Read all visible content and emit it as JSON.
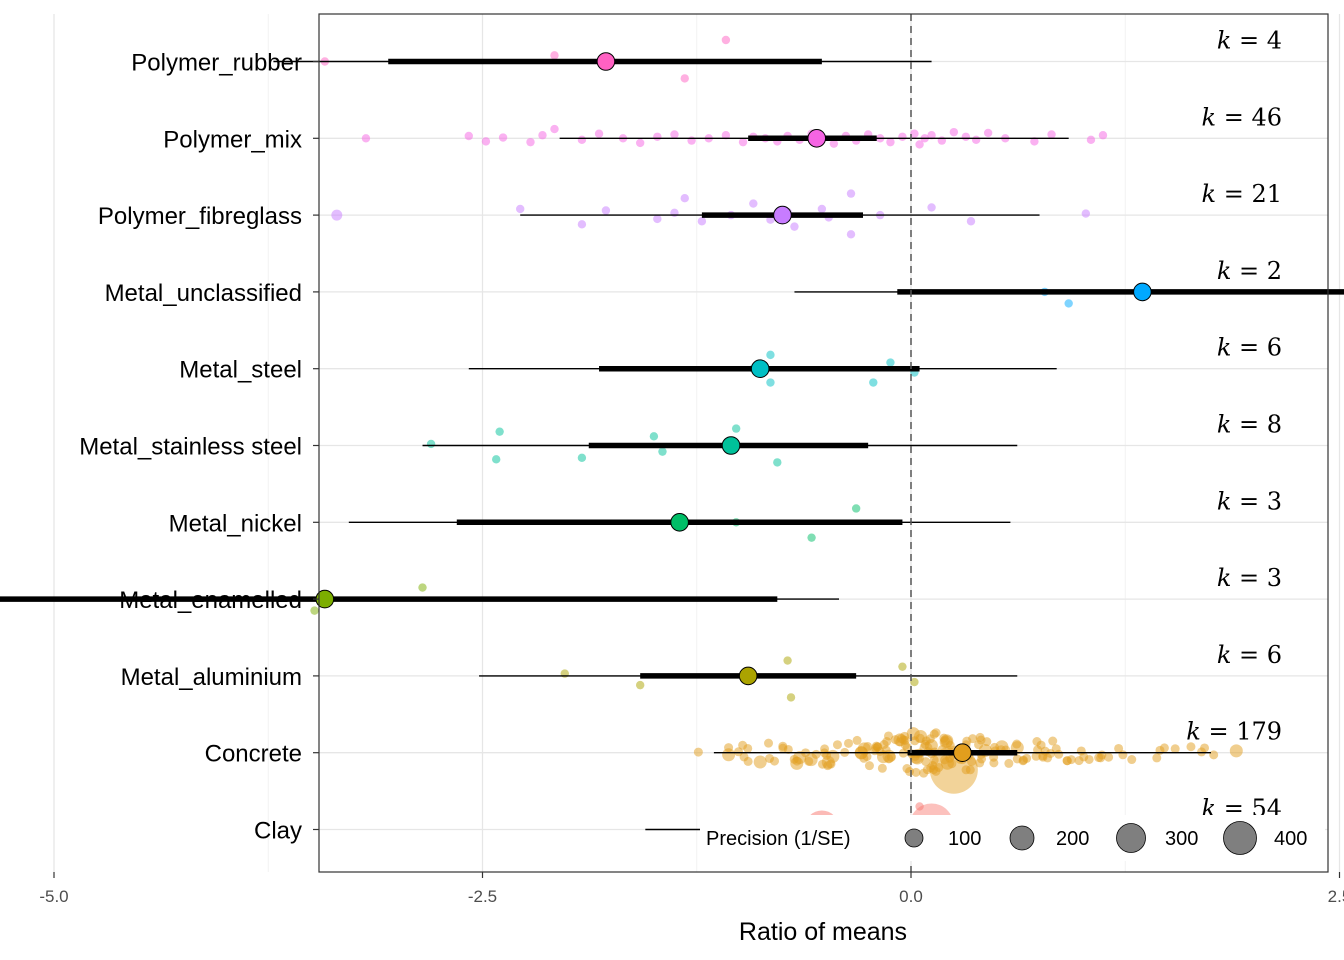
{
  "chart_data": {
    "type": "scatter",
    "xlabel": "Ratio of means",
    "xlim": [
      -6.9,
      4.6
    ],
    "x_ticks": [
      -5.0,
      -2.5,
      0.0,
      2.5
    ],
    "x_tick_labels": [
      "-5.0",
      "-2.5",
      "0.0",
      "2.5"
    ],
    "reference_line_x": 0,
    "grid": true,
    "legend": {
      "title": "Precision (1/SE)",
      "position": "bottom-right",
      "sizes": [
        100,
        200,
        300,
        400
      ],
      "labels": [
        "100",
        "200",
        "300",
        "400"
      ]
    },
    "categories": [
      {
        "name": "Polymer_rubber",
        "k_text": "= 4",
        "color": "#FF61C3",
        "estimate": -1.78,
        "ci": [
          -3.05,
          -0.52
        ],
        "pi": [
          -3.72,
          0.12
        ],
        "points": [
          [
            -1.32,
            -0.22
          ],
          [
            -3.42,
            0.0
          ],
          [
            -2.08,
            0.08
          ],
          [
            -1.08,
            0.28
          ]
        ]
      },
      {
        "name": "Polymer_mix",
        "k_text": "= 46",
        "color": "#F564E3",
        "estimate": -0.55,
        "ci": [
          -0.95,
          -0.2
        ],
        "pi": [
          -2.05,
          0.92
        ],
        "points": [
          [
            -3.18,
            0.0
          ],
          [
            -2.58,
            0.03
          ],
          [
            -2.48,
            -0.04
          ],
          [
            -2.38,
            0.01
          ],
          [
            -2.22,
            -0.05
          ],
          [
            -2.15,
            0.04
          ],
          [
            -2.08,
            0.12
          ],
          [
            -1.92,
            -0.02
          ],
          [
            -1.82,
            0.06
          ],
          [
            -1.68,
            0.0
          ],
          [
            -1.58,
            -0.06
          ],
          [
            -1.48,
            0.02
          ],
          [
            -1.38,
            0.05
          ],
          [
            -1.28,
            -0.03
          ],
          [
            -1.18,
            0.0
          ],
          [
            -1.08,
            0.04
          ],
          [
            -0.98,
            -0.05
          ],
          [
            -0.92,
            0.02
          ],
          [
            -0.85,
            0.0
          ],
          [
            -0.78,
            -0.04
          ],
          [
            -0.72,
            0.03
          ],
          [
            -0.65,
            -0.02
          ],
          [
            -0.58,
            0.06
          ],
          [
            -0.52,
            0.0
          ],
          [
            -0.45,
            -0.07
          ],
          [
            -0.38,
            0.03
          ],
          [
            -0.32,
            -0.03
          ],
          [
            -0.25,
            0.05
          ],
          [
            -0.18,
            0.0
          ],
          [
            -0.12,
            -0.05
          ],
          [
            -0.05,
            0.02
          ],
          [
            0.02,
            0.06
          ],
          [
            0.05,
            -0.08
          ],
          [
            0.08,
            0.0
          ],
          [
            0.12,
            0.04
          ],
          [
            0.18,
            -0.03
          ],
          [
            0.25,
            0.08
          ],
          [
            0.32,
            0.02
          ],
          [
            0.38,
            -0.02
          ],
          [
            0.45,
            0.07
          ],
          [
            0.55,
            0.0
          ],
          [
            0.72,
            -0.04
          ],
          [
            0.82,
            0.05
          ],
          [
            1.05,
            -0.02
          ],
          [
            1.12,
            0.04
          ],
          [
            3.95,
            0.0
          ]
        ]
      },
      {
        "name": "Polymer_fibreglass",
        "k_text": "= 21",
        "color": "#C77CFF",
        "estimate": -0.75,
        "ci": [
          -1.22,
          -0.28
        ],
        "pi": [
          -2.28,
          0.75
        ],
        "points": [
          [
            -3.35,
            0.0
          ],
          [
            -2.28,
            0.08
          ],
          [
            -1.92,
            -0.12
          ],
          [
            -1.78,
            0.06
          ],
          [
            -1.48,
            -0.05
          ],
          [
            -1.38,
            0.03
          ],
          [
            -1.32,
            0.22
          ],
          [
            -1.22,
            -0.08
          ],
          [
            -1.05,
            0.0
          ],
          [
            -0.92,
            0.15
          ],
          [
            -0.82,
            -0.06
          ],
          [
            -0.72,
            0.04
          ],
          [
            -0.68,
            -0.15
          ],
          [
            -0.52,
            0.08
          ],
          [
            -0.48,
            -0.03
          ],
          [
            -0.35,
            0.28
          ],
          [
            -0.35,
            -0.25
          ],
          [
            -0.18,
            0.0
          ],
          [
            0.12,
            0.1
          ],
          [
            0.35,
            -0.08
          ],
          [
            1.02,
            0.02
          ]
        ]
      },
      {
        "name": "Metal_unclassified",
        "k_text": "= 2",
        "color": "#00A9FF",
        "estimate": 1.35,
        "ci": [
          -0.08,
          2.8
        ],
        "pi": [
          -0.68,
          3.38
        ],
        "points": [
          [
            0.78,
            0.0
          ],
          [
            0.92,
            -0.15
          ]
        ]
      },
      {
        "name": "Metal_steel",
        "k_text": "= 6",
        "color": "#00BFC4",
        "estimate": -0.88,
        "ci": [
          -1.82,
          0.05
        ],
        "pi": [
          -2.58,
          0.85
        ],
        "points": [
          [
            -0.82,
            0.18
          ],
          [
            -0.82,
            -0.18
          ],
          [
            -0.12,
            0.08
          ],
          [
            -0.22,
            -0.18
          ],
          [
            0.02,
            -0.05
          ],
          [
            -0.92,
            0.0
          ]
        ]
      },
      {
        "name": "Metal_stainless steel",
        "k_text": "= 8",
        "color": "#00C19A",
        "estimate": -1.05,
        "ci": [
          -1.88,
          -0.25
        ],
        "pi": [
          -2.85,
          0.62
        ],
        "points": [
          [
            -2.4,
            0.18
          ],
          [
            -2.8,
            0.02
          ],
          [
            -2.42,
            -0.18
          ],
          [
            -1.5,
            0.12
          ],
          [
            -1.92,
            -0.16
          ],
          [
            -1.45,
            -0.08
          ],
          [
            -1.02,
            0.22
          ],
          [
            -0.78,
            -0.22
          ]
        ]
      },
      {
        "name": "Metal_nickel",
        "k_text": "= 3",
        "color": "#00BE67",
        "estimate": -1.35,
        "ci": [
          -2.65,
          -0.05
        ],
        "pi": [
          -3.28,
          0.58
        ],
        "points": [
          [
            -0.32,
            0.18
          ],
          [
            -1.02,
            0.0
          ],
          [
            -0.58,
            -0.2
          ]
        ]
      },
      {
        "name": "Metal_enamelled",
        "k_text": "= 3",
        "color": "#7CAE00",
        "estimate": -3.42,
        "ci": [
          -5.98,
          -0.78
        ],
        "pi": [
          -6.38,
          -0.42
        ],
        "points": [
          [
            -2.85,
            0.15
          ],
          [
            -3.48,
            -0.15
          ],
          [
            -3.42,
            0.0
          ]
        ]
      },
      {
        "name": "Metal_aluminium",
        "k_text": "= 6",
        "color": "#ABA300",
        "estimate": -0.95,
        "ci": [
          -1.58,
          -0.32
        ],
        "pi": [
          -2.52,
          0.62
        ],
        "points": [
          [
            -0.72,
            0.2
          ],
          [
            -2.02,
            0.03
          ],
          [
            -1.58,
            -0.12
          ],
          [
            -0.7,
            -0.28
          ],
          [
            -0.05,
            0.12
          ],
          [
            0.02,
            -0.08
          ]
        ]
      },
      {
        "name": "Concrete",
        "k_text": "= 179",
        "color": "#E29E1D",
        "estimate": 0.3,
        "ci": [
          -0.02,
          0.62
        ],
        "pi": [
          -1.15,
          1.75
        ],
        "points": []
      },
      {
        "name": "Clay",
        "k_text": "= 54",
        "color": "#F8766D",
        "estimate": -0.15,
        "ci": [
          -0.42,
          0.05
        ],
        "pi": [
          -1.55,
          1.02
        ],
        "points": [
          [
            -1.02,
            0.0
          ],
          [
            -0.78,
            0.05
          ],
          [
            -0.62,
            -0.05
          ],
          [
            -0.48,
            0.08
          ],
          [
            -0.35,
            -0.02
          ],
          [
            -0.22,
            0.1
          ],
          [
            -0.12,
            -0.08
          ],
          [
            0.02,
            0.0
          ],
          [
            0.05,
            0.3
          ],
          [
            0.08,
            -0.12
          ],
          [
            0.15,
            0.06
          ],
          [
            0.22,
            -0.05
          ],
          [
            0.32,
            0.02
          ],
          [
            0.45,
            -0.04
          ],
          [
            0.72,
            0.03
          ]
        ]
      }
    ]
  }
}
